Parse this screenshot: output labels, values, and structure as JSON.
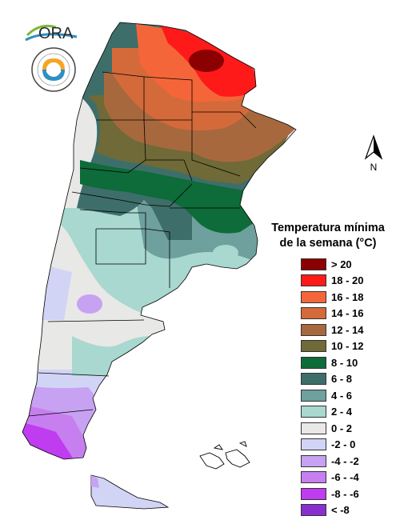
{
  "logo": {
    "text": "ORA"
  },
  "north_arrow": {
    "label": "N"
  },
  "legend": {
    "title_line1": "Temperatura mínima",
    "title_line2": "de la semana (°C)",
    "items": [
      {
        "label": "> 20",
        "color": "#8b0000"
      },
      {
        "label": "18 - 20",
        "color": "#ff1a1a"
      },
      {
        "label": "16 - 18",
        "color": "#f4663a"
      },
      {
        "label": "14 - 16",
        "color": "#d46a3a"
      },
      {
        "label": "12 - 14",
        "color": "#a8683e"
      },
      {
        "label": "10 - 12",
        "color": "#6f6a37"
      },
      {
        "label": "8 - 10",
        "color": "#0e6b3a"
      },
      {
        "label": "6 - 8",
        "color": "#3e6e6a"
      },
      {
        "label": "4 - 6",
        "color": "#6ea09e"
      },
      {
        "label": "2 - 4",
        "color": "#a8d8d0"
      },
      {
        "label": "0 - 2",
        "color": "#e8e8e6"
      },
      {
        "label": "-2 - 0",
        "color": "#d2d4f6"
      },
      {
        "label": "-4 - -2",
        "color": "#c7a2f3"
      },
      {
        "label": "-6 - -4",
        "color": "#c77ff0"
      },
      {
        "label": "-8 - -6",
        "color": "#c03cf0"
      },
      {
        "label": "< -8",
        "color": "#8a2fcf"
      }
    ]
  }
}
